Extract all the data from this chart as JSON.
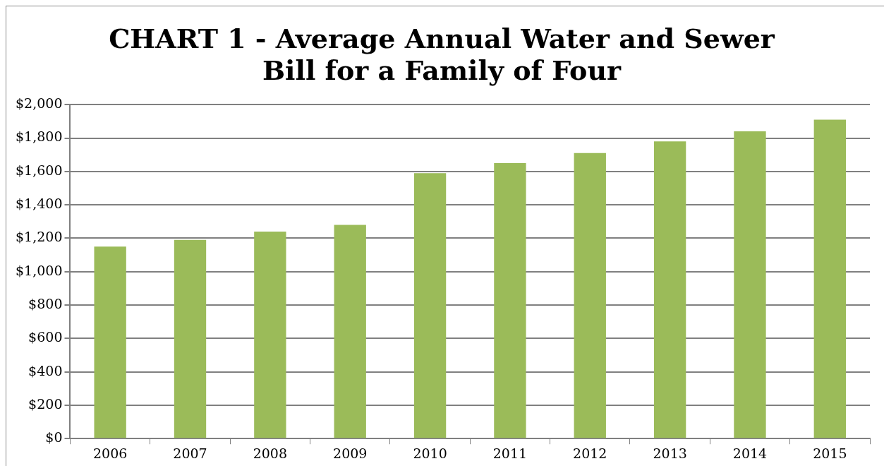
{
  "chart_data": {
    "type": "bar",
    "title": "CHART 1 - Average Annual Water and Sewer Bill for a Family of Four",
    "categories": [
      "2006",
      "2007",
      "2008",
      "2009",
      "2010",
      "2011",
      "2012",
      "2013",
      "2014",
      "2015"
    ],
    "values": [
      1150,
      1190,
      1240,
      1280,
      1590,
      1650,
      1710,
      1780,
      1840,
      1910
    ],
    "color": "#9bbb59",
    "ylim": [
      0,
      2000
    ],
    "yticks": [
      {
        "value": 0,
        "label": "$0"
      },
      {
        "value": 200,
        "label": "$200"
      },
      {
        "value": 400,
        "label": "$400"
      },
      {
        "value": 600,
        "label": "$600"
      },
      {
        "value": 800,
        "label": "$800"
      },
      {
        "value": 1000,
        "label": "$1,000"
      },
      {
        "value": 1200,
        "label": "$1,200"
      },
      {
        "value": 1400,
        "label": "$1,400"
      },
      {
        "value": 1600,
        "label": "$1,600"
      },
      {
        "value": 1800,
        "label": "$1,800"
      },
      {
        "value": 2000,
        "label": "$2,000"
      }
    ],
    "grid": "y"
  }
}
